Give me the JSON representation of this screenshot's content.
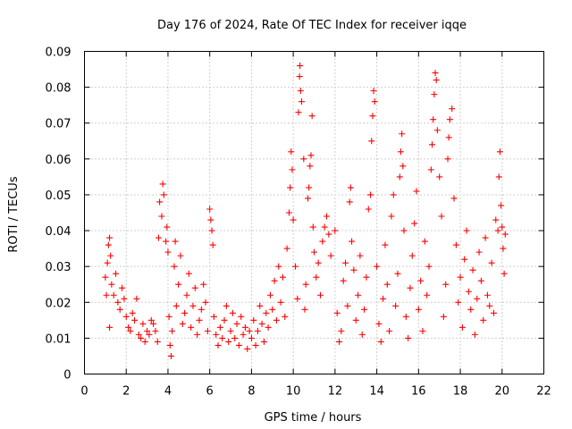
{
  "chart_data": {
    "type": "scatter",
    "title": "Day 176 of 2024, Rate Of TEC Index for receiver iqqe",
    "xlabel": "GPS time / hours",
    "ylabel": "ROTI / TECUs",
    "xlim": [
      0,
      22
    ],
    "ylim": [
      0,
      0.09
    ],
    "xticks": [
      "0",
      "2",
      "4",
      "6",
      "8",
      "10",
      "12",
      "14",
      "16",
      "18",
      "20",
      "22"
    ],
    "yticks": [
      "0",
      "0.01",
      "0.02",
      "0.03",
      "0.04",
      "0.05",
      "0.06",
      "0.07",
      "0.08",
      "0.09"
    ],
    "grid": true,
    "marker": "plus",
    "color": "#ff0000",
    "series": [
      {
        "name": "ROTI",
        "points": [
          [
            1.0,
            0.027
          ],
          [
            1.1,
            0.031
          ],
          [
            1.15,
            0.036
          ],
          [
            1.2,
            0.038
          ],
          [
            1.25,
            0.033
          ],
          [
            1.3,
            0.025
          ],
          [
            1.4,
            0.022
          ],
          [
            1.5,
            0.028
          ],
          [
            1.6,
            0.02
          ],
          [
            1.7,
            0.018
          ],
          [
            1.8,
            0.024
          ],
          [
            1.9,
            0.021
          ],
          [
            1.05,
            0.022
          ],
          [
            1.2,
            0.013
          ],
          [
            2.0,
            0.016
          ],
          [
            2.1,
            0.013
          ],
          [
            2.2,
            0.012
          ],
          [
            2.3,
            0.017
          ],
          [
            2.4,
            0.015
          ],
          [
            2.5,
            0.021
          ],
          [
            2.6,
            0.011
          ],
          [
            2.7,
            0.01
          ],
          [
            2.8,
            0.014
          ],
          [
            2.9,
            0.009
          ],
          [
            3.0,
            0.012
          ],
          [
            3.1,
            0.011
          ],
          [
            3.2,
            0.015
          ],
          [
            3.3,
            0.014
          ],
          [
            3.4,
            0.012
          ],
          [
            3.5,
            0.009
          ],
          [
            3.55,
            0.038
          ],
          [
            3.6,
            0.048
          ],
          [
            3.7,
            0.044
          ],
          [
            3.75,
            0.053
          ],
          [
            3.8,
            0.05
          ],
          [
            3.9,
            0.037
          ],
          [
            3.95,
            0.041
          ],
          [
            4.0,
            0.034
          ],
          [
            4.05,
            0.016
          ],
          [
            4.1,
            0.008
          ],
          [
            4.15,
            0.005
          ],
          [
            4.2,
            0.012
          ],
          [
            4.3,
            0.03
          ],
          [
            4.35,
            0.037
          ],
          [
            4.4,
            0.019
          ],
          [
            4.5,
            0.025
          ],
          [
            4.6,
            0.033
          ],
          [
            4.7,
            0.014
          ],
          [
            4.8,
            0.017
          ],
          [
            4.9,
            0.022
          ],
          [
            5.0,
            0.028
          ],
          [
            5.1,
            0.013
          ],
          [
            5.2,
            0.019
          ],
          [
            5.3,
            0.024
          ],
          [
            5.4,
            0.011
          ],
          [
            5.5,
            0.015
          ],
          [
            5.6,
            0.018
          ],
          [
            5.7,
            0.025
          ],
          [
            5.8,
            0.02
          ],
          [
            5.9,
            0.012
          ],
          [
            6.0,
            0.046
          ],
          [
            6.05,
            0.043
          ],
          [
            6.1,
            0.04
          ],
          [
            6.15,
            0.036
          ],
          [
            6.2,
            0.016
          ],
          [
            6.3,
            0.011
          ],
          [
            6.4,
            0.008
          ],
          [
            6.5,
            0.013
          ],
          [
            6.6,
            0.01
          ],
          [
            6.7,
            0.015
          ],
          [
            6.8,
            0.019
          ],
          [
            6.9,
            0.009
          ],
          [
            7.0,
            0.012
          ],
          [
            7.1,
            0.017
          ],
          [
            7.2,
            0.01
          ],
          [
            7.3,
            0.014
          ],
          [
            7.4,
            0.008
          ],
          [
            7.5,
            0.016
          ],
          [
            7.6,
            0.011
          ],
          [
            7.7,
            0.013
          ],
          [
            7.8,
            0.007
          ],
          [
            7.9,
            0.012
          ],
          [
            8.0,
            0.01
          ],
          [
            8.1,
            0.015
          ],
          [
            8.2,
            0.008
          ],
          [
            8.3,
            0.012
          ],
          [
            8.4,
            0.019
          ],
          [
            8.5,
            0.014
          ],
          [
            8.6,
            0.009
          ],
          [
            8.7,
            0.017
          ],
          [
            8.8,
            0.013
          ],
          [
            8.9,
            0.022
          ],
          [
            9.0,
            0.018
          ],
          [
            9.1,
            0.026
          ],
          [
            9.2,
            0.015
          ],
          [
            9.3,
            0.03
          ],
          [
            9.4,
            0.02
          ],
          [
            9.5,
            0.027
          ],
          [
            9.6,
            0.016
          ],
          [
            9.7,
            0.035
          ],
          [
            9.8,
            0.045
          ],
          [
            9.85,
            0.052
          ],
          [
            9.9,
            0.062
          ],
          [
            9.95,
            0.057
          ],
          [
            10.0,
            0.043
          ],
          [
            10.1,
            0.03
          ],
          [
            10.2,
            0.021
          ],
          [
            10.25,
            0.073
          ],
          [
            10.3,
            0.083
          ],
          [
            10.32,
            0.086
          ],
          [
            10.35,
            0.079
          ],
          [
            10.4,
            0.076
          ],
          [
            10.5,
            0.06
          ],
          [
            10.55,
            0.018
          ],
          [
            10.6,
            0.025
          ],
          [
            10.7,
            0.049
          ],
          [
            10.75,
            0.052
          ],
          [
            10.8,
            0.058
          ],
          [
            10.85,
            0.061
          ],
          [
            10.9,
            0.072
          ],
          [
            10.95,
            0.041
          ],
          [
            11.0,
            0.034
          ],
          [
            11.1,
            0.027
          ],
          [
            11.2,
            0.031
          ],
          [
            11.3,
            0.022
          ],
          [
            11.4,
            0.037
          ],
          [
            11.5,
            0.041
          ],
          [
            11.6,
            0.044
          ],
          [
            11.7,
            0.039
          ],
          [
            11.8,
            0.033
          ],
          [
            12.0,
            0.04
          ],
          [
            12.1,
            0.017
          ],
          [
            12.2,
            0.009
          ],
          [
            12.3,
            0.012
          ],
          [
            12.4,
            0.026
          ],
          [
            12.5,
            0.031
          ],
          [
            12.6,
            0.019
          ],
          [
            12.7,
            0.048
          ],
          [
            12.75,
            0.052
          ],
          [
            12.8,
            0.037
          ],
          [
            12.9,
            0.029
          ],
          [
            13.0,
            0.015
          ],
          [
            13.1,
            0.022
          ],
          [
            13.2,
            0.033
          ],
          [
            13.3,
            0.011
          ],
          [
            13.4,
            0.018
          ],
          [
            13.5,
            0.027
          ],
          [
            13.6,
            0.046
          ],
          [
            13.7,
            0.05
          ],
          [
            13.75,
            0.065
          ],
          [
            13.8,
            0.072
          ],
          [
            13.85,
            0.079
          ],
          [
            13.9,
            0.076
          ],
          [
            14.0,
            0.03
          ],
          [
            14.1,
            0.014
          ],
          [
            14.2,
            0.009
          ],
          [
            14.3,
            0.021
          ],
          [
            14.4,
            0.036
          ],
          [
            14.5,
            0.025
          ],
          [
            14.6,
            0.012
          ],
          [
            14.7,
            0.044
          ],
          [
            14.8,
            0.05
          ],
          [
            14.9,
            0.019
          ],
          [
            15.0,
            0.028
          ],
          [
            15.1,
            0.055
          ],
          [
            15.15,
            0.062
          ],
          [
            15.2,
            0.067
          ],
          [
            15.25,
            0.058
          ],
          [
            15.3,
            0.04
          ],
          [
            15.4,
            0.016
          ],
          [
            15.5,
            0.01
          ],
          [
            15.6,
            0.024
          ],
          [
            15.7,
            0.033
          ],
          [
            15.8,
            0.042
          ],
          [
            15.9,
            0.051
          ],
          [
            16.0,
            0.018
          ],
          [
            16.1,
            0.026
          ],
          [
            16.2,
            0.012
          ],
          [
            16.3,
            0.037
          ],
          [
            16.4,
            0.022
          ],
          [
            16.5,
            0.03
          ],
          [
            16.6,
            0.057
          ],
          [
            16.65,
            0.064
          ],
          [
            16.7,
            0.071
          ],
          [
            16.75,
            0.078
          ],
          [
            16.8,
            0.084
          ],
          [
            16.85,
            0.082
          ],
          [
            16.9,
            0.068
          ],
          [
            17.0,
            0.055
          ],
          [
            17.1,
            0.044
          ],
          [
            17.2,
            0.016
          ],
          [
            17.3,
            0.025
          ],
          [
            17.4,
            0.06
          ],
          [
            17.45,
            0.066
          ],
          [
            17.5,
            0.071
          ],
          [
            17.6,
            0.074
          ],
          [
            17.7,
            0.049
          ],
          [
            17.8,
            0.036
          ],
          [
            17.9,
            0.02
          ],
          [
            18.0,
            0.027
          ],
          [
            18.1,
            0.013
          ],
          [
            18.2,
            0.032
          ],
          [
            18.3,
            0.04
          ],
          [
            18.4,
            0.023
          ],
          [
            18.5,
            0.018
          ],
          [
            18.6,
            0.029
          ],
          [
            18.7,
            0.011
          ],
          [
            18.8,
            0.021
          ],
          [
            18.9,
            0.034
          ],
          [
            19.0,
            0.026
          ],
          [
            19.1,
            0.015
          ],
          [
            19.2,
            0.038
          ],
          [
            19.3,
            0.022
          ],
          [
            19.4,
            0.019
          ],
          [
            19.5,
            0.031
          ],
          [
            19.6,
            0.017
          ],
          [
            19.7,
            0.043
          ],
          [
            19.8,
            0.04
          ],
          [
            19.85,
            0.055
          ],
          [
            19.9,
            0.062
          ],
          [
            19.95,
            0.047
          ],
          [
            20.0,
            0.041
          ],
          [
            20.05,
            0.035
          ],
          [
            20.1,
            0.028
          ],
          [
            20.15,
            0.039
          ]
        ]
      }
    ]
  }
}
